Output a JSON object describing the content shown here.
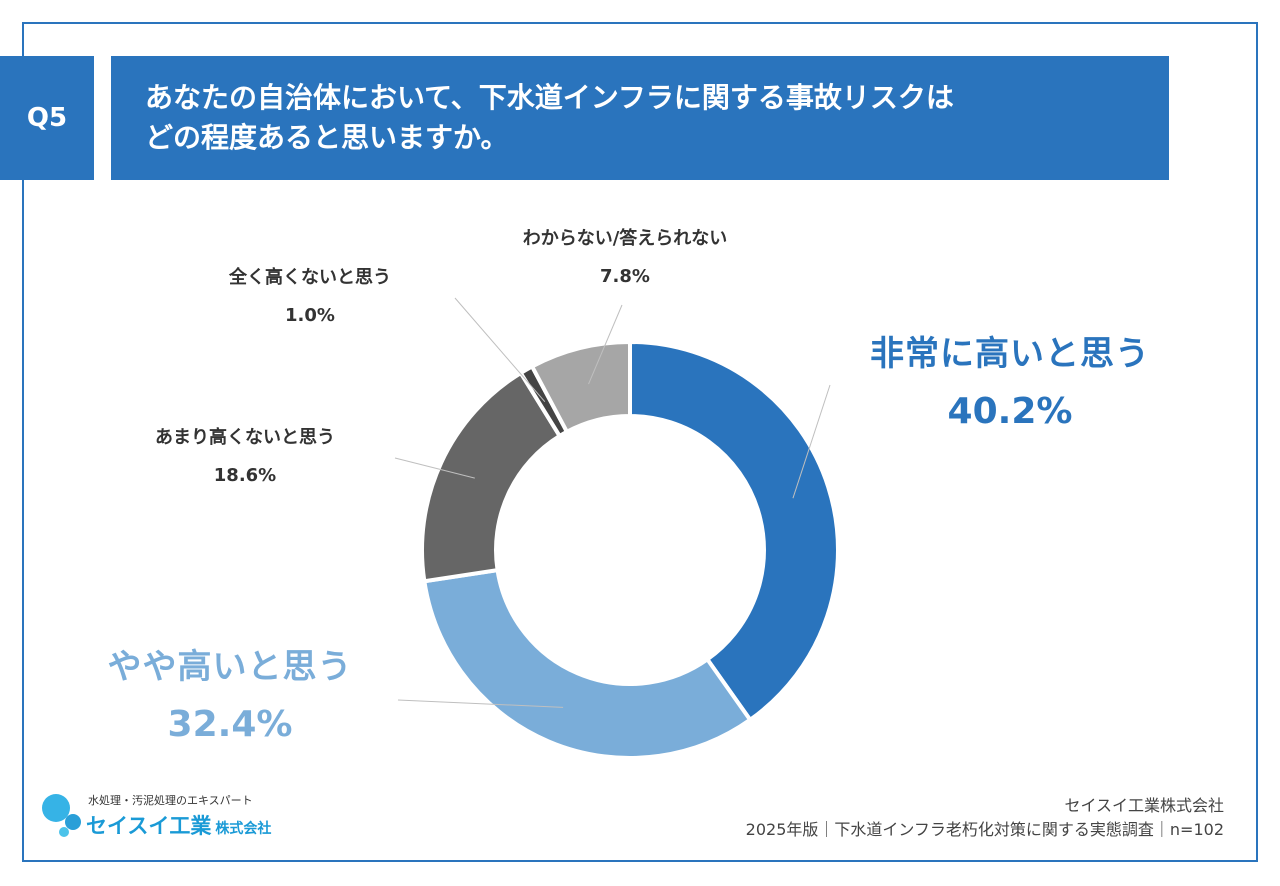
{
  "question": {
    "number": "Q5",
    "title_line1": "あなたの自治体において、下水道インフラに関する事故リスクは",
    "title_line2": "どの程度あると思いますか。"
  },
  "chart_data": {
    "type": "pie",
    "subtype": "donut",
    "slices": [
      {
        "label": "非常に高いと思う",
        "value": 40.2,
        "display": "40.2%",
        "color": "#2a74bd"
      },
      {
        "label": "やや高いと思う",
        "value": 32.4,
        "display": "32.4%",
        "color": "#7aadd9"
      },
      {
        "label": "あまり高くないと思う",
        "value": 18.6,
        "display": "18.6%",
        "color": "#666666"
      },
      {
        "label": "全く高くないと思う",
        "value": 1.0,
        "display": "1.0%",
        "color": "#444444"
      },
      {
        "label": "わからない/答えられない",
        "value": 7.8,
        "display": "7.8%",
        "color": "#a6a6a6"
      }
    ]
  },
  "logo": {
    "tagline": "水処理・汚泥処理のエキスパート",
    "name": "セイスイ工業",
    "suffix": "株式会社"
  },
  "footer": {
    "company": "セイスイ工業株式会社",
    "source": "2025年版｜下水道インフラ老朽化対策に関する実態調査｜n=102"
  },
  "colors": {
    "accent": "#2a74bd",
    "label_light": "#7aadd9",
    "logo": "#1a9ad6"
  }
}
